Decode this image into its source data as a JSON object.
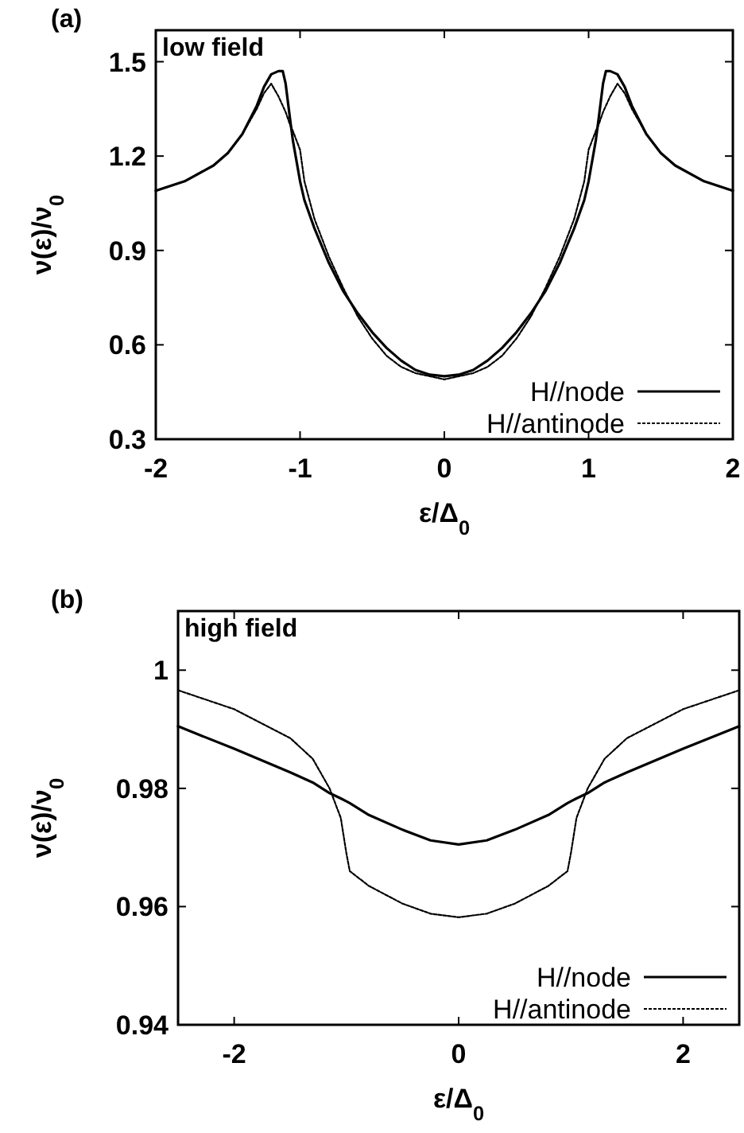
{
  "chart_data": [
    {
      "type": "line",
      "title": "(a)",
      "annotations": [
        "low field"
      ],
      "xlabel": "ε/Δ$_{0}$",
      "ylabel": "ν(ε)/ν$_{0}$",
      "xlim": [
        -2,
        2
      ],
      "xticks": [
        -2,
        -1,
        0,
        1,
        2
      ],
      "ylim": [
        0.3,
        1.6
      ],
      "yticks": [
        {
          "value": 0.3,
          "label": "0.3"
        },
        {
          "value": 0.6,
          "label": "0.6"
        },
        {
          "value": 0.9,
          "label": "0.9"
        },
        {
          "value": 1.2,
          "label": "1.2"
        },
        {
          "value": 1.5,
          "label": "1.5"
        }
      ],
      "legend": "bottom right",
      "grid": false,
      "x": [
        -2,
        -1.8,
        -1.6,
        -1.5,
        -1.4,
        -1.3,
        -1.25,
        -1.2,
        -1.15,
        -1.12,
        -1.1,
        -1.07,
        -1.05,
        -1,
        -0.97,
        -0.9,
        -0.8,
        -0.7,
        -0.6,
        -0.5,
        -0.4,
        -0.3,
        -0.2,
        -0.1,
        0,
        0.1,
        0.2,
        0.3,
        0.4,
        0.5,
        0.6,
        0.7,
        0.8,
        0.9,
        0.97,
        1,
        1.05,
        1.07,
        1.1,
        1.12,
        1.15,
        1.2,
        1.25,
        1.3,
        1.4,
        1.5,
        1.6,
        1.8,
        2
      ],
      "series": [
        {
          "name": "H//node",
          "color": "#000000",
          "line_style": "solid",
          "values": [
            1.09,
            1.12,
            1.17,
            1.21,
            1.27,
            1.36,
            1.42,
            1.46,
            1.47,
            1.47,
            1.43,
            1.32,
            1.25,
            1.12,
            1.06,
            0.97,
            0.86,
            0.77,
            0.7,
            0.64,
            0.59,
            0.55,
            0.52,
            0.505,
            0.5,
            0.505,
            0.52,
            0.55,
            0.59,
            0.64,
            0.7,
            0.77,
            0.86,
            0.97,
            1.06,
            1.12,
            1.25,
            1.32,
            1.43,
            1.47,
            1.47,
            1.46,
            1.42,
            1.36,
            1.27,
            1.21,
            1.17,
            1.12,
            1.09
          ]
        },
        {
          "name": "H//antinode",
          "color": "#000000",
          "line_style": "dashed",
          "values": [
            1.09,
            1.12,
            1.17,
            1.21,
            1.27,
            1.35,
            1.4,
            1.43,
            1.39,
            1.36,
            1.34,
            1.3,
            1.28,
            1.22,
            1.12,
            1,
            0.88,
            0.78,
            0.69,
            0.62,
            0.565,
            0.53,
            0.51,
            0.5,
            0.49,
            0.5,
            0.51,
            0.53,
            0.565,
            0.62,
            0.69,
            0.78,
            0.88,
            1,
            1.12,
            1.22,
            1.28,
            1.3,
            1.34,
            1.36,
            1.39,
            1.43,
            1.4,
            1.35,
            1.27,
            1.21,
            1.17,
            1.12,
            1.09
          ]
        }
      ]
    },
    {
      "type": "line",
      "title": "(b)",
      "annotations": [
        "high field"
      ],
      "xlabel": "ε/Δ$_{0}$",
      "ylabel": "ν(ε)/ν$_{0}$",
      "xlim": [
        -2.5,
        2.5
      ],
      "xticks": [
        -2,
        0,
        2
      ],
      "ylim": [
        0.94,
        1.01
      ],
      "yticks": [
        {
          "value": 0.94,
          "label": "0.94"
        },
        {
          "value": 0.96,
          "label": "0.96"
        },
        {
          "value": 0.98,
          "label": "0.98"
        },
        1
      ],
      "legend": "bottom right",
      "grid": false,
      "x": [
        -2.5,
        -2,
        -1.5,
        -1.3,
        -1.15,
        -1.05,
        -1,
        -0.97,
        -0.8,
        -0.5,
        -0.25,
        0,
        0.25,
        0.5,
        0.8,
        0.97,
        1,
        1.05,
        1.15,
        1.3,
        1.5,
        2,
        2.5
      ],
      "series": [
        {
          "name": "H//node",
          "color": "#000000",
          "line_style": "solid",
          "values": [
            0.9905,
            0.9867,
            0.9827,
            0.981,
            0.9792,
            0.9783,
            0.9778,
            0.9775,
            0.9755,
            0.973,
            0.9712,
            0.9705,
            0.9712,
            0.973,
            0.9755,
            0.9775,
            0.9778,
            0.9783,
            0.9792,
            0.981,
            0.9827,
            0.9867,
            0.9905
          ]
        },
        {
          "name": "H//antinode",
          "color": "#000000",
          "line_style": "dashed",
          "values": [
            0.9966,
            0.9934,
            0.9885,
            0.985,
            0.98,
            0.975,
            0.969,
            0.966,
            0.9635,
            0.9605,
            0.9588,
            0.9582,
            0.9588,
            0.9605,
            0.9635,
            0.966,
            0.969,
            0.975,
            0.98,
            0.985,
            0.9885,
            0.9934,
            0.9966
          ]
        }
      ]
    }
  ]
}
